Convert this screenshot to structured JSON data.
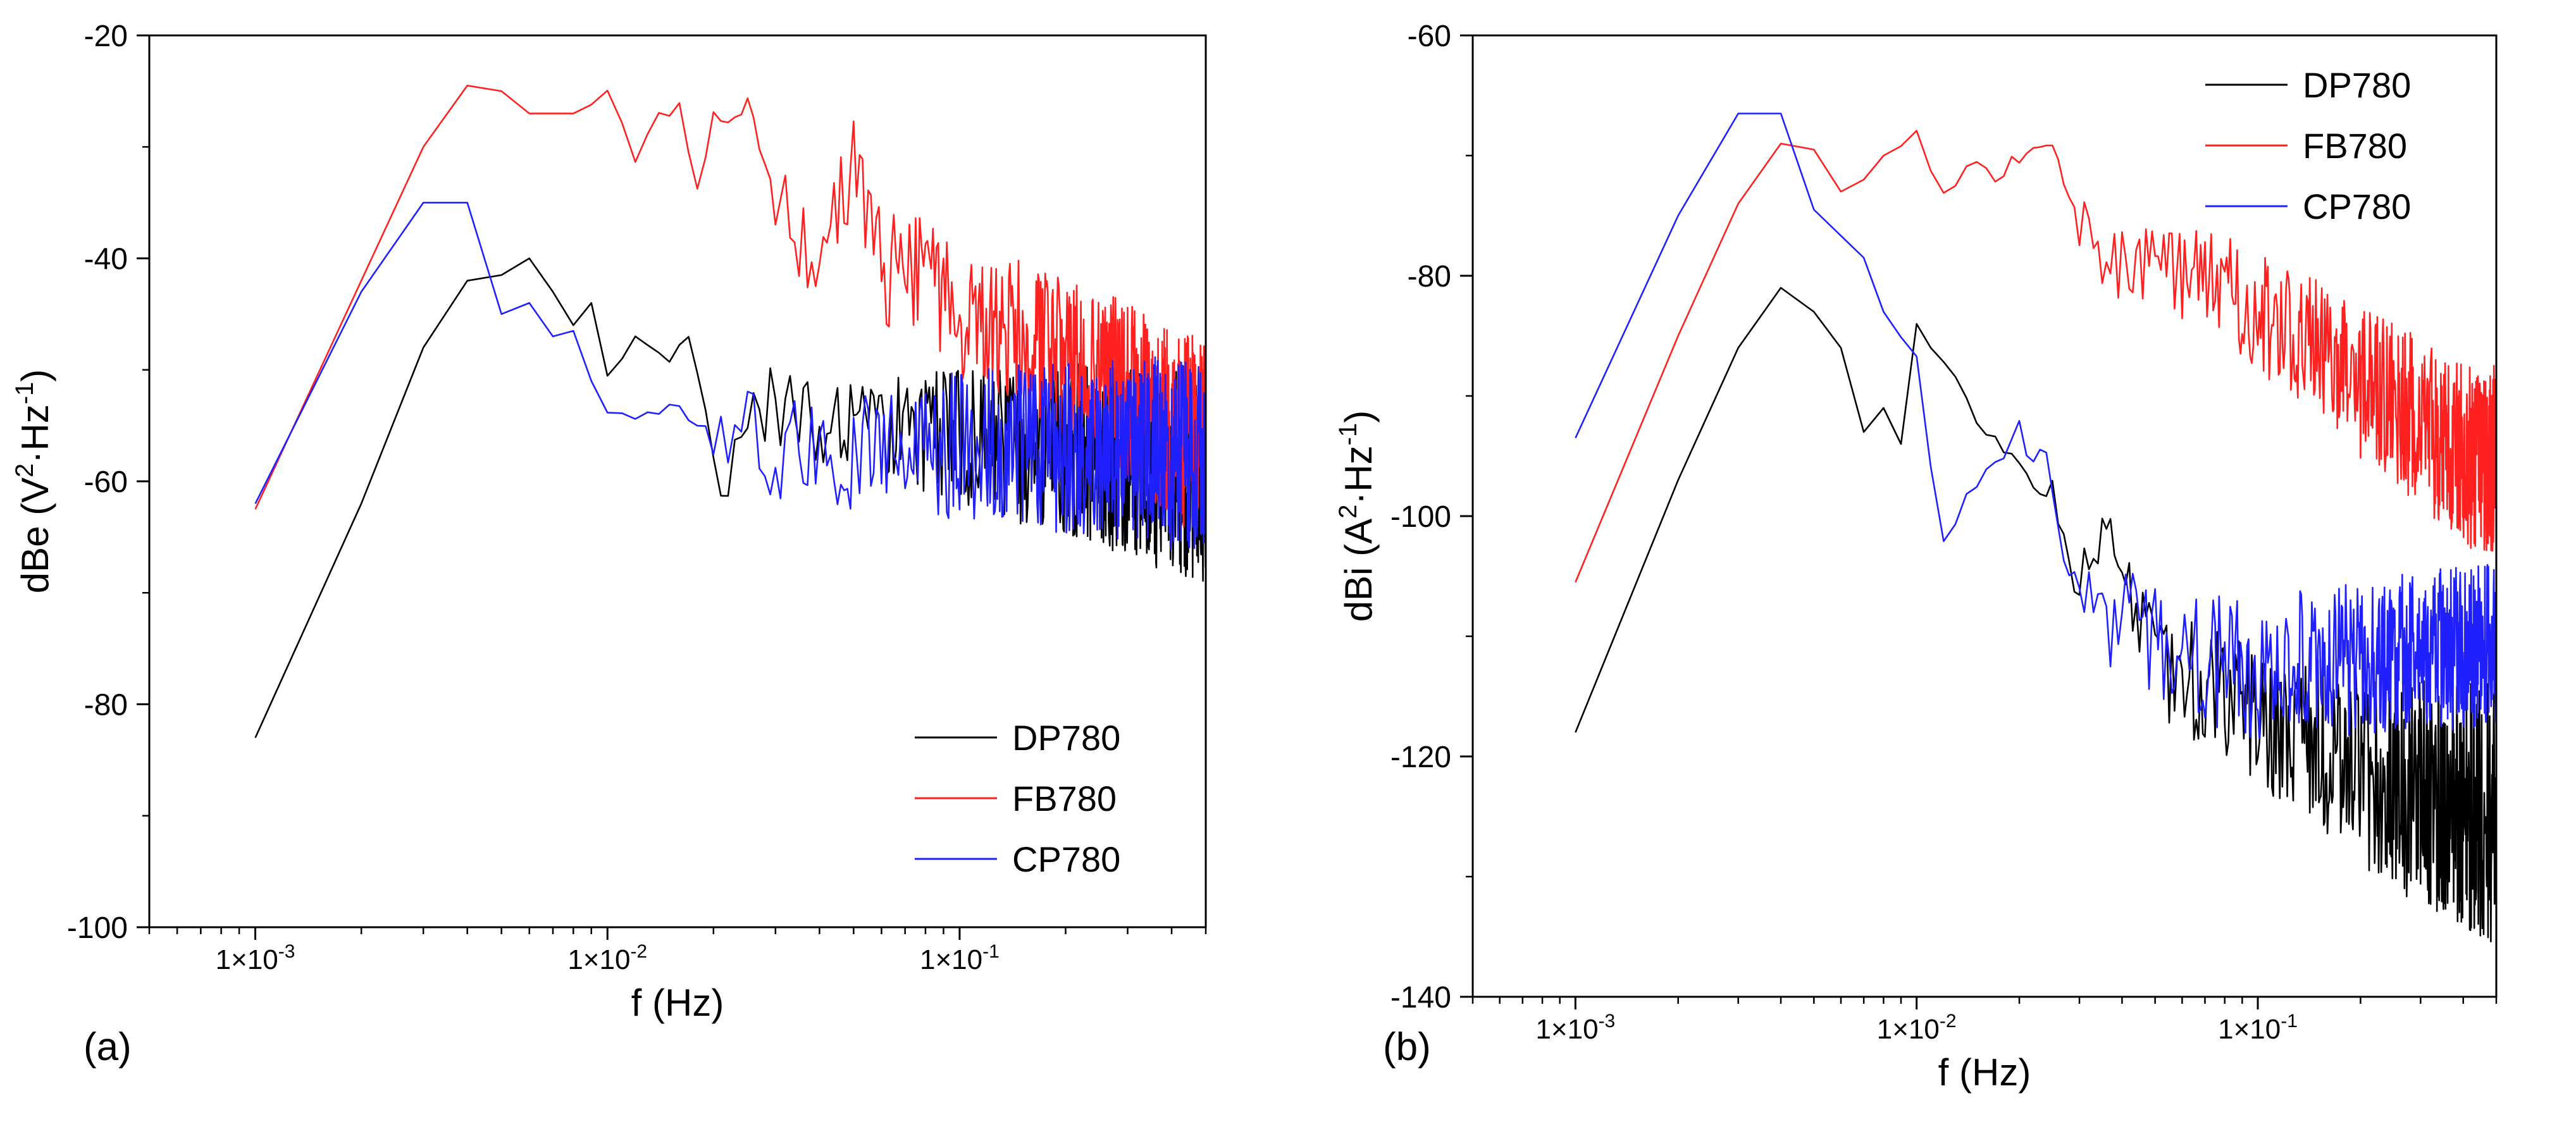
{
  "figure": {
    "panel_a_letter": "(a)",
    "panel_b_letter": "(b)"
  },
  "chart_data": [
    {
      "type": "line",
      "panel": "(a)",
      "title": "",
      "xlabel": "f (Hz)",
      "ylabel_main": "dBe (V",
      "ylabel_sup1": "2",
      "ylabel_mid": "·Hz",
      "ylabel_sup2": "-1",
      "ylabel_end": ")",
      "xscale": "log",
      "xlim": [
        0.0005,
        0.5
      ],
      "ylim": [
        -100,
        -20
      ],
      "xticks_major": [
        0.001,
        0.01,
        0.1
      ],
      "xtick_labels": [
        "1×10-3",
        "1×10-2",
        "1×10-1"
      ],
      "xtick_label_base": [
        "1×10",
        "1×10",
        "1×10"
      ],
      "xtick_label_exp": [
        "-3",
        "-2",
        "-1"
      ],
      "yticks_major": [
        -100,
        -80,
        -60,
        -40,
        -20
      ],
      "ytick_labels": [
        "-100",
        "-80",
        "-60",
        "-40",
        "-20"
      ],
      "legend_position": "bottom-right",
      "series": [
        {
          "name": "DP780",
          "color": "#000000",
          "anchors": [
            [
              0.001,
              -83
            ],
            [
              0.002,
              -62
            ],
            [
              0.003,
              -48
            ],
            [
              0.004,
              -42
            ],
            [
              0.005,
              -41.5
            ],
            [
              0.006,
              -40
            ],
            [
              0.007,
              -43
            ],
            [
              0.008,
              -46
            ],
            [
              0.009,
              -44
            ],
            [
              0.01,
              -51
            ],
            [
              0.012,
              -47
            ],
            [
              0.015,
              -49
            ],
            [
              0.017,
              -47
            ],
            [
              0.02,
              -56
            ],
            [
              0.022,
              -61
            ],
            [
              0.025,
              -54
            ],
            [
              0.03,
              -53
            ],
            [
              0.04,
              -55
            ],
            [
              0.05,
              -56
            ],
            [
              0.07,
              -55
            ],
            [
              0.1,
              -56
            ],
            [
              0.15,
              -57
            ],
            [
              0.2,
              -57
            ],
            [
              0.3,
              -58
            ],
            [
              0.4,
              -59
            ],
            [
              0.5,
              -59
            ]
          ],
          "noise_start": 0.02,
          "noise_amp": [
            [
              0.02,
              3
            ],
            [
              0.1,
              6
            ],
            [
              0.5,
              10
            ]
          ]
        },
        {
          "name": "FB780",
          "color": "#ff2020",
          "anchors": [
            [
              0.001,
              -62.5
            ],
            [
              0.002,
              -42
            ],
            [
              0.003,
              -30
            ],
            [
              0.004,
              -24.5
            ],
            [
              0.005,
              -25
            ],
            [
              0.006,
              -27
            ],
            [
              0.008,
              -27
            ],
            [
              0.01,
              -25.5
            ],
            [
              0.012,
              -31
            ],
            [
              0.014,
              -27
            ],
            [
              0.016,
              -26.5
            ],
            [
              0.018,
              -34
            ],
            [
              0.02,
              -27
            ],
            [
              0.022,
              -28
            ],
            [
              0.025,
              -26
            ],
            [
              0.03,
              -35
            ],
            [
              0.04,
              -41
            ],
            [
              0.05,
              -31
            ],
            [
              0.06,
              -41
            ],
            [
              0.08,
              -42
            ],
            [
              0.1,
              -45
            ],
            [
              0.15,
              -47
            ],
            [
              0.2,
              -49
            ],
            [
              0.3,
              -52
            ],
            [
              0.4,
              -55
            ],
            [
              0.5,
              -56
            ]
          ],
          "noise_start": 0.03,
          "noise_amp": [
            [
              0.03,
              4
            ],
            [
              0.1,
              6
            ],
            [
              0.5,
              9
            ]
          ]
        },
        {
          "name": "CP780",
          "color": "#2020ff",
          "anchors": [
            [
              0.001,
              -62
            ],
            [
              0.002,
              -43
            ],
            [
              0.003,
              -35
            ],
            [
              0.004,
              -35
            ],
            [
              0.005,
              -45
            ],
            [
              0.006,
              -44
            ],
            [
              0.007,
              -47
            ],
            [
              0.008,
              -46.5
            ],
            [
              0.009,
              -51
            ],
            [
              0.01,
              -53.5
            ],
            [
              0.012,
              -54
            ],
            [
              0.015,
              -53.5
            ],
            [
              0.017,
              -54
            ],
            [
              0.02,
              -56
            ],
            [
              0.025,
              -55
            ],
            [
              0.03,
              -57
            ],
            [
              0.04,
              -57
            ],
            [
              0.05,
              -57
            ],
            [
              0.07,
              -57
            ],
            [
              0.1,
              -57
            ],
            [
              0.15,
              -57
            ],
            [
              0.2,
              -57
            ],
            [
              0.3,
              -57
            ],
            [
              0.5,
              -58
            ]
          ],
          "noise_start": 0.02,
          "noise_amp": [
            [
              0.02,
              4
            ],
            [
              0.1,
              7
            ],
            [
              0.5,
              9
            ]
          ]
        }
      ]
    },
    {
      "type": "line",
      "panel": "(b)",
      "title": "",
      "xlabel": "f (Hz)",
      "ylabel_main": "dBi (A",
      "ylabel_sup1": "2",
      "ylabel_mid": "·Hz",
      "ylabel_sup2": "-1",
      "ylabel_end": ")",
      "xscale": "log",
      "xlim": [
        0.0005,
        0.5
      ],
      "ylim": [
        -140,
        -60
      ],
      "xticks_major": [
        0.001,
        0.01,
        0.1
      ],
      "xtick_labels": [
        "1×10-3",
        "1×10-2",
        "1×10-1"
      ],
      "xtick_label_base": [
        "1×10",
        "1×10",
        "1×10"
      ],
      "xtick_label_exp": [
        "-3",
        "-2",
        "-1"
      ],
      "yticks_major": [
        -140,
        -120,
        -100,
        -80,
        -60
      ],
      "ytick_labels": [
        "-140",
        "-120",
        "-100",
        "-80",
        "-60"
      ],
      "legend_position": "top-right",
      "series": [
        {
          "name": "DP780",
          "color": "#000000",
          "anchors": [
            [
              0.001,
              -118
            ],
            [
              0.002,
              -97
            ],
            [
              0.003,
              -86
            ],
            [
              0.004,
              -81
            ],
            [
              0.005,
              -83
            ],
            [
              0.006,
              -86
            ],
            [
              0.007,
              -93
            ],
            [
              0.008,
              -91
            ],
            [
              0.009,
              -94
            ],
            [
              0.01,
              -84
            ],
            [
              0.012,
              -87
            ],
            [
              0.015,
              -92
            ],
            [
              0.02,
              -96
            ],
            [
              0.025,
              -99
            ],
            [
              0.03,
              -104
            ],
            [
              0.035,
              -100
            ],
            [
              0.04,
              -106
            ],
            [
              0.05,
              -112
            ],
            [
              0.07,
              -114
            ],
            [
              0.1,
              -117
            ],
            [
              0.15,
              -119
            ],
            [
              0.2,
              -121
            ],
            [
              0.3,
              -123
            ],
            [
              0.4,
              -124
            ],
            [
              0.5,
              -125
            ]
          ],
          "noise_start": 0.025,
          "noise_amp": [
            [
              0.025,
              3
            ],
            [
              0.1,
              6
            ],
            [
              0.5,
              11
            ]
          ]
        },
        {
          "name": "FB780",
          "color": "#ff2020",
          "anchors": [
            [
              0.001,
              -105.5
            ],
            [
              0.002,
              -85
            ],
            [
              0.003,
              -74
            ],
            [
              0.004,
              -69
            ],
            [
              0.005,
              -69.5
            ],
            [
              0.006,
              -73
            ],
            [
              0.007,
              -72
            ],
            [
              0.008,
              -70
            ],
            [
              0.01,
              -68.5
            ],
            [
              0.012,
              -73
            ],
            [
              0.015,
              -70
            ],
            [
              0.017,
              -72
            ],
            [
              0.02,
              -70
            ],
            [
              0.025,
              -69
            ],
            [
              0.03,
              -76
            ],
            [
              0.04,
              -79
            ],
            [
              0.05,
              -79
            ],
            [
              0.07,
              -80
            ],
            [
              0.1,
              -83
            ],
            [
              0.15,
              -86
            ],
            [
              0.2,
              -89
            ],
            [
              0.3,
              -92
            ],
            [
              0.4,
              -95
            ],
            [
              0.5,
              -95
            ]
          ],
          "noise_start": 0.03,
          "noise_amp": [
            [
              0.03,
              3
            ],
            [
              0.1,
              5
            ],
            [
              0.5,
              8
            ]
          ]
        },
        {
          "name": "CP780",
          "color": "#2020ff",
          "anchors": [
            [
              0.001,
              -93.5
            ],
            [
              0.002,
              -75
            ],
            [
              0.003,
              -66.5
            ],
            [
              0.004,
              -66.5
            ],
            [
              0.005,
              -74.5
            ],
            [
              0.007,
              -78.5
            ],
            [
              0.008,
              -83
            ],
            [
              0.01,
              -87
            ],
            [
              0.011,
              -96
            ],
            [
              0.012,
              -102
            ],
            [
              0.015,
              -97
            ],
            [
              0.02,
              -93.5
            ],
            [
              0.03,
              -105
            ],
            [
              0.04,
              -109
            ],
            [
              0.05,
              -110
            ],
            [
              0.07,
              -112
            ],
            [
              0.1,
              -113
            ],
            [
              0.15,
              -112
            ],
            [
              0.2,
              -112
            ],
            [
              0.3,
              -111
            ],
            [
              0.4,
              -111
            ],
            [
              0.5,
              -111
            ]
          ],
          "noise_start": 0.02,
          "noise_amp": [
            [
              0.02,
              4
            ],
            [
              0.1,
              6
            ],
            [
              0.5,
              7
            ]
          ]
        }
      ]
    }
  ]
}
